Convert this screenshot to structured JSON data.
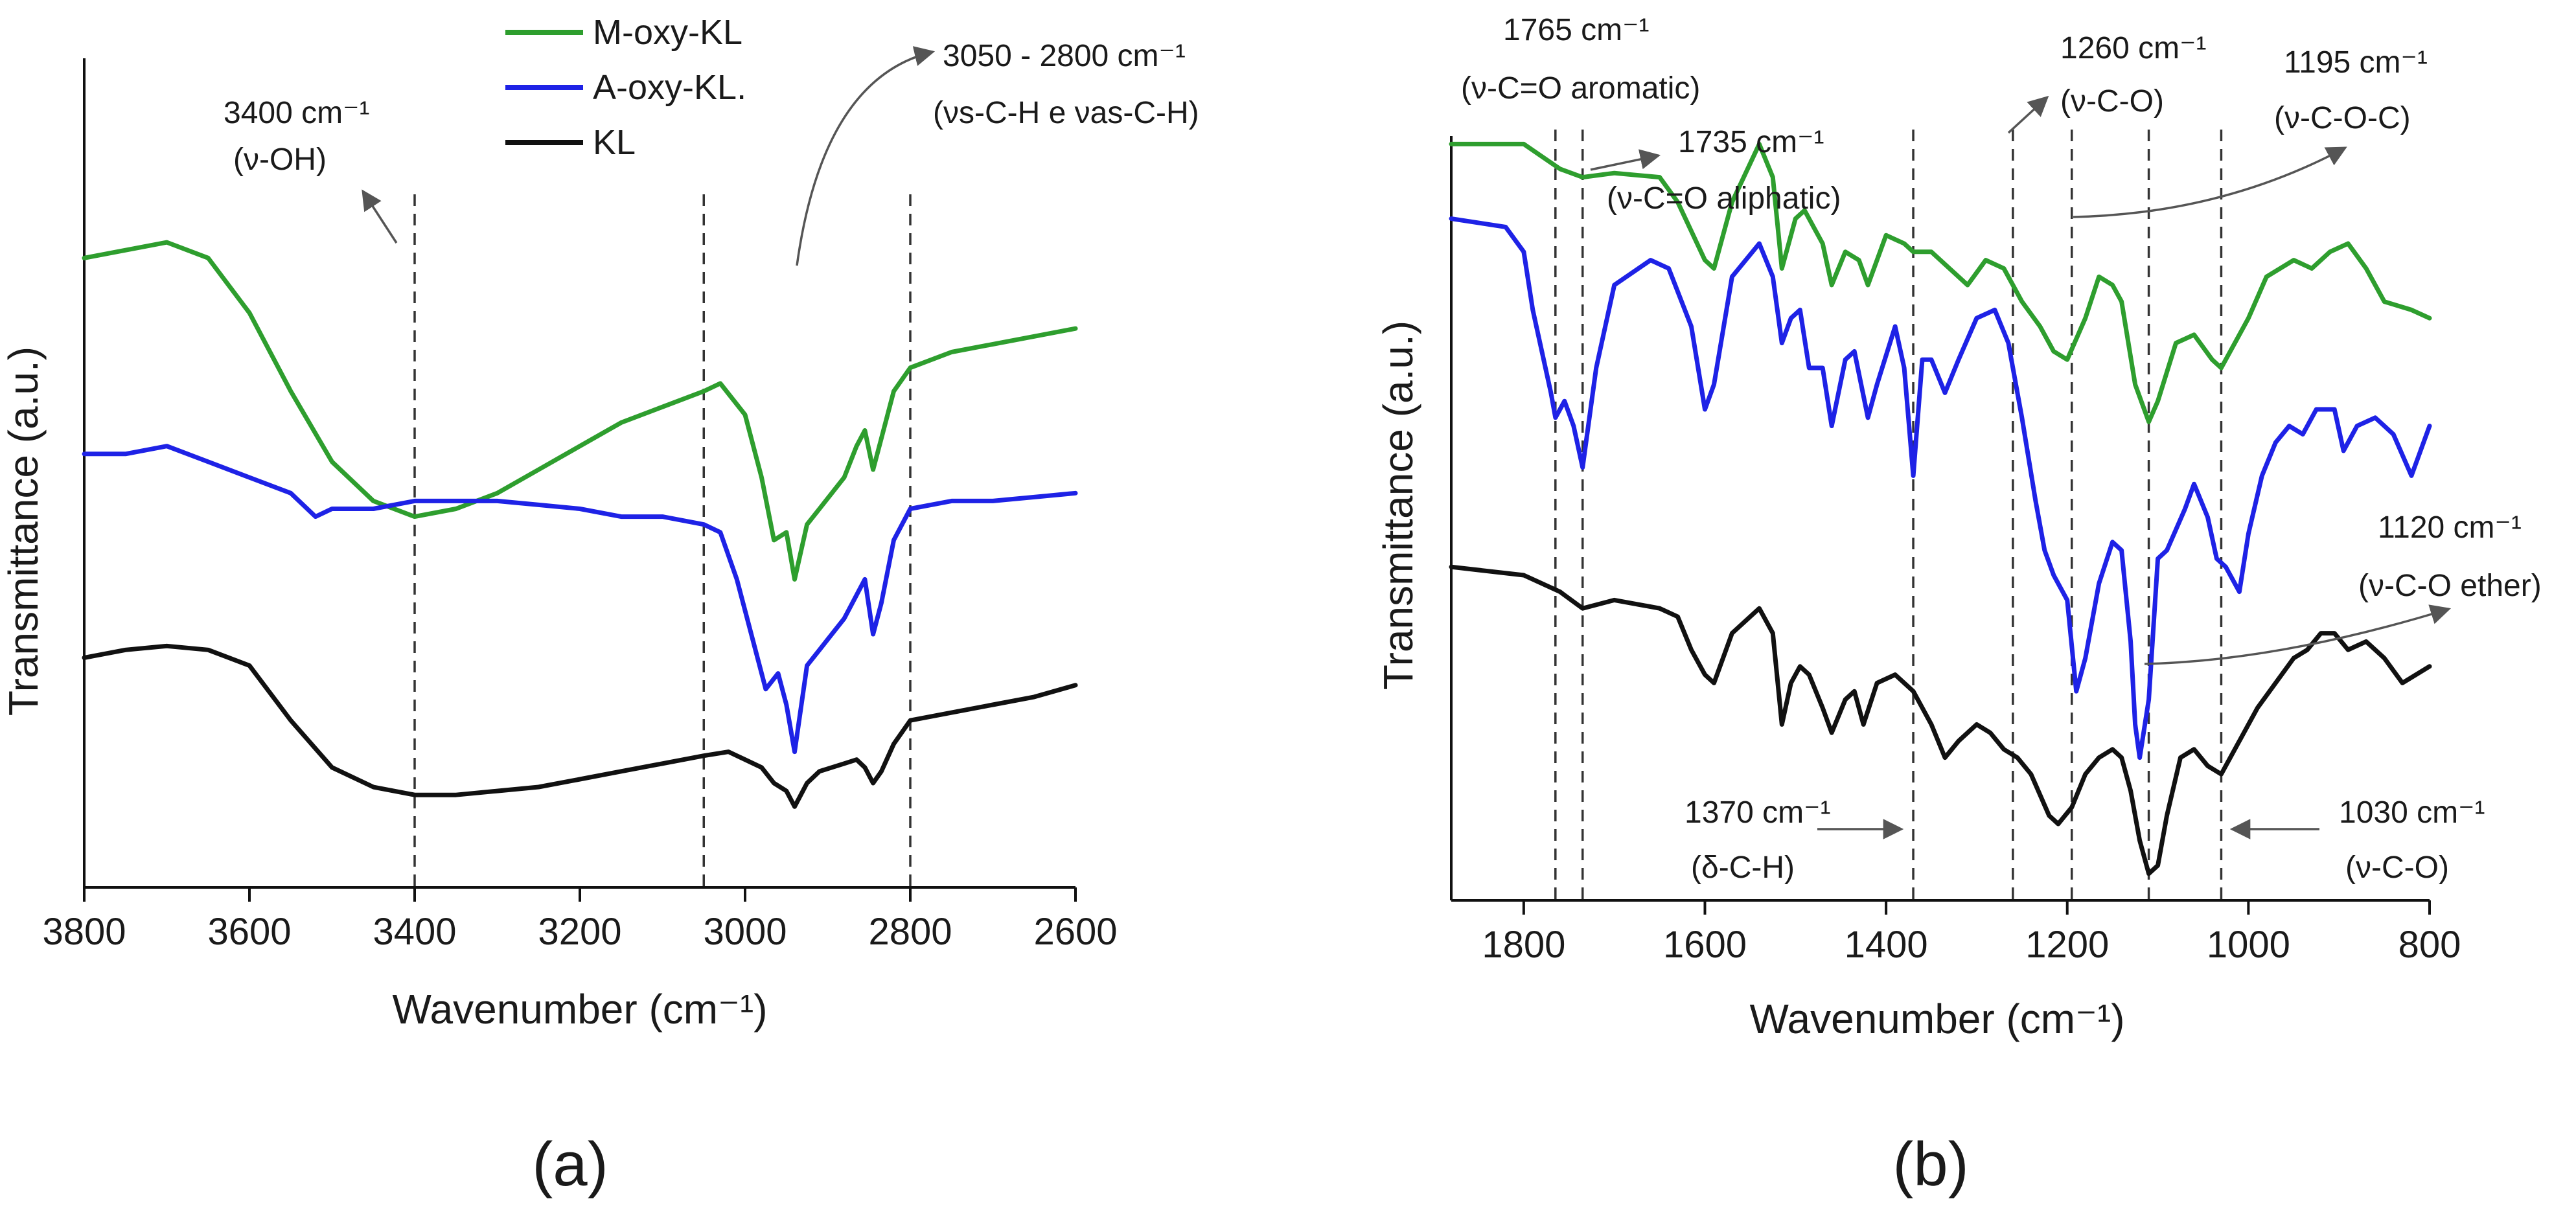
{
  "chart_data": [
    {
      "panel_label": "(a)",
      "type": "line",
      "xlabel": "Wavenumber (cm⁻¹)",
      "ylabel": "Transmittance (a.u.)",
      "xlim": [
        3800,
        2600
      ],
      "x_ticks": [
        "3800",
        "3600",
        "3400",
        "3200",
        "3000",
        "2800",
        "2600"
      ],
      "legend": [
        "M-oxy-KL",
        "A-oxy-KL.",
        "KL"
      ],
      "series": [
        {
          "name": "M-oxy-KL",
          "color": "#2e9e2e",
          "x": [
            3800,
            3750,
            3700,
            3650,
            3600,
            3550,
            3500,
            3450,
            3400,
            3350,
            3300,
            3250,
            3200,
            3150,
            3100,
            3050,
            3030,
            3000,
            2980,
            2965,
            2950,
            2940,
            2925,
            2910,
            2895,
            2880,
            2865,
            2855,
            2845,
            2835,
            2820,
            2800,
            2750,
            2700,
            2650,
            2600
          ],
          "y": [
            0.77,
            0.78,
            0.79,
            0.77,
            0.7,
            0.6,
            0.51,
            0.46,
            0.44,
            0.45,
            0.47,
            0.5,
            0.53,
            0.56,
            0.58,
            0.6,
            0.61,
            0.57,
            0.49,
            0.41,
            0.42,
            0.36,
            0.43,
            0.45,
            0.47,
            0.49,
            0.53,
            0.55,
            0.5,
            0.54,
            0.6,
            0.63,
            0.65,
            0.66,
            0.67,
            0.68
          ]
        },
        {
          "name": "A-oxy-KL.",
          "color": "#1e22e6",
          "x": [
            3800,
            3750,
            3700,
            3650,
            3600,
            3550,
            3520,
            3500,
            3450,
            3400,
            3350,
            3300,
            3250,
            3200,
            3150,
            3100,
            3050,
            3030,
            3010,
            2990,
            2975,
            2960,
            2950,
            2940,
            2925,
            2910,
            2895,
            2880,
            2865,
            2855,
            2845,
            2835,
            2820,
            2800,
            2750,
            2700,
            2650,
            2600
          ],
          "y": [
            0.52,
            0.52,
            0.53,
            0.51,
            0.49,
            0.47,
            0.44,
            0.45,
            0.45,
            0.46,
            0.46,
            0.46,
            0.455,
            0.45,
            0.44,
            0.44,
            0.43,
            0.42,
            0.36,
            0.28,
            0.22,
            0.24,
            0.2,
            0.14,
            0.25,
            0.27,
            0.29,
            0.31,
            0.34,
            0.36,
            0.29,
            0.33,
            0.41,
            0.45,
            0.46,
            0.46,
            0.465,
            0.47
          ]
        },
        {
          "name": "KL",
          "color": "#111111",
          "x": [
            3800,
            3750,
            3700,
            3650,
            3600,
            3550,
            3500,
            3450,
            3400,
            3350,
            3300,
            3250,
            3200,
            3150,
            3100,
            3050,
            3020,
            3000,
            2980,
            2965,
            2950,
            2940,
            2925,
            2910,
            2895,
            2880,
            2865,
            2855,
            2845,
            2835,
            2820,
            2800,
            2750,
            2700,
            2650,
            2600
          ],
          "y": [
            0.26,
            0.27,
            0.275,
            0.27,
            0.25,
            0.18,
            0.12,
            0.095,
            0.085,
            0.085,
            0.09,
            0.095,
            0.105,
            0.115,
            0.125,
            0.135,
            0.14,
            0.13,
            0.12,
            0.1,
            0.09,
            0.07,
            0.1,
            0.115,
            0.12,
            0.125,
            0.13,
            0.12,
            0.1,
            0.115,
            0.15,
            0.18,
            0.19,
            0.2,
            0.21,
            0.225
          ]
        }
      ],
      "guide_lines_x": [
        3400,
        3050,
        2800
      ],
      "annotations": {
        "oh": {
          "value": "3400 cm⁻¹",
          "label": "(ν-OH)"
        },
        "ch": {
          "value": "3050 - 2800 cm⁻¹",
          "label": "(νs-C-H e νas-C-H)"
        }
      }
    },
    {
      "panel_label": "(b)",
      "type": "line",
      "xlabel": "Wavenumber (cm⁻¹)",
      "ylabel": "Transmittance (a.u.)",
      "xlim": [
        1880,
        800
      ],
      "x_ticks": [
        "1800",
        "1600",
        "1400",
        "1200",
        "1000",
        "800"
      ],
      "series": [
        {
          "name": "M-oxy-KL",
          "color": "#2e9e2e",
          "x": [
            1880,
            1800,
            1760,
            1735,
            1700,
            1650,
            1630,
            1600,
            1590,
            1570,
            1540,
            1525,
            1515,
            1500,
            1490,
            1470,
            1460,
            1445,
            1430,
            1420,
            1400,
            1380,
            1370,
            1350,
            1330,
            1310,
            1290,
            1270,
            1250,
            1230,
            1215,
            1200,
            1180,
            1165,
            1150,
            1140,
            1125,
            1110,
            1100,
            1080,
            1060,
            1040,
            1030,
            1000,
            980,
            950,
            930,
            910,
            890,
            870,
            850,
            820,
            800
          ],
          "y": [
            0.92,
            0.92,
            0.89,
            0.88,
            0.885,
            0.88,
            0.85,
            0.78,
            0.77,
            0.85,
            0.92,
            0.88,
            0.77,
            0.83,
            0.84,
            0.8,
            0.75,
            0.79,
            0.78,
            0.75,
            0.81,
            0.8,
            0.79,
            0.79,
            0.77,
            0.75,
            0.78,
            0.77,
            0.73,
            0.7,
            0.67,
            0.66,
            0.71,
            0.76,
            0.75,
            0.73,
            0.63,
            0.585,
            0.61,
            0.68,
            0.69,
            0.66,
            0.65,
            0.71,
            0.76,
            0.78,
            0.77,
            0.79,
            0.8,
            0.77,
            0.73,
            0.72,
            0.71
          ]
        },
        {
          "name": "A-oxy-KL.",
          "color": "#1e22e6",
          "x": [
            1880,
            1820,
            1800,
            1790,
            1770,
            1765,
            1755,
            1745,
            1735,
            1720,
            1700,
            1660,
            1640,
            1615,
            1600,
            1590,
            1570,
            1540,
            1525,
            1515,
            1505,
            1495,
            1485,
            1470,
            1460,
            1445,
            1435,
            1420,
            1410,
            1390,
            1380,
            1370,
            1360,
            1350,
            1335,
            1320,
            1300,
            1280,
            1265,
            1250,
            1235,
            1225,
            1215,
            1200,
            1190,
            1180,
            1165,
            1150,
            1140,
            1130,
            1125,
            1120,
            1110,
            1100,
            1090,
            1070,
            1060,
            1045,
            1035,
            1025,
            1010,
            1000,
            985,
            970,
            955,
            940,
            925,
            905,
            895,
            880,
            860,
            840,
            820,
            800
          ],
          "y": [
            0.83,
            0.82,
            0.79,
            0.72,
            0.62,
            0.59,
            0.61,
            0.58,
            0.53,
            0.65,
            0.75,
            0.78,
            0.77,
            0.7,
            0.6,
            0.63,
            0.76,
            0.8,
            0.76,
            0.68,
            0.71,
            0.72,
            0.65,
            0.65,
            0.58,
            0.66,
            0.67,
            0.59,
            0.63,
            0.7,
            0.65,
            0.52,
            0.66,
            0.66,
            0.62,
            0.66,
            0.71,
            0.72,
            0.68,
            0.59,
            0.49,
            0.43,
            0.4,
            0.37,
            0.26,
            0.3,
            0.39,
            0.44,
            0.43,
            0.32,
            0.22,
            0.18,
            0.25,
            0.42,
            0.43,
            0.48,
            0.51,
            0.47,
            0.42,
            0.41,
            0.38,
            0.45,
            0.52,
            0.56,
            0.58,
            0.57,
            0.6,
            0.6,
            0.55,
            0.58,
            0.59,
            0.57,
            0.52,
            0.58
          ]
        },
        {
          "name": "KL",
          "color": "#111111",
          "x": [
            1880,
            1800,
            1760,
            1735,
            1700,
            1650,
            1630,
            1615,
            1600,
            1590,
            1570,
            1540,
            1525,
            1515,
            1505,
            1495,
            1485,
            1470,
            1460,
            1445,
            1435,
            1425,
            1410,
            1390,
            1370,
            1350,
            1335,
            1320,
            1300,
            1285,
            1270,
            1255,
            1240,
            1220,
            1210,
            1195,
            1180,
            1165,
            1150,
            1140,
            1130,
            1120,
            1110,
            1100,
            1090,
            1075,
            1060,
            1045,
            1030,
            1010,
            990,
            970,
            950,
            935,
            920,
            905,
            890,
            870,
            850,
            830,
            815,
            800
          ],
          "y": [
            0.41,
            0.4,
            0.38,
            0.36,
            0.37,
            0.36,
            0.35,
            0.31,
            0.28,
            0.27,
            0.33,
            0.36,
            0.33,
            0.22,
            0.27,
            0.29,
            0.28,
            0.24,
            0.21,
            0.25,
            0.26,
            0.22,
            0.27,
            0.28,
            0.26,
            0.22,
            0.18,
            0.2,
            0.22,
            0.21,
            0.19,
            0.18,
            0.16,
            0.11,
            0.1,
            0.12,
            0.16,
            0.18,
            0.19,
            0.18,
            0.14,
            0.08,
            0.04,
            0.05,
            0.11,
            0.18,
            0.19,
            0.17,
            0.16,
            0.2,
            0.24,
            0.27,
            0.3,
            0.31,
            0.33,
            0.33,
            0.31,
            0.32,
            0.3,
            0.27,
            0.28,
            0.29
          ]
        }
      ],
      "guide_lines_x": [
        1765,
        1735,
        1370,
        1260,
        1195,
        1110,
        1030
      ],
      "annotations": {
        "c1765": {
          "value": "1765 cm⁻¹",
          "label": "(ν-C=O aromatic)"
        },
        "c1735": {
          "value": "1735 cm⁻¹",
          "label": "(ν-C=O aliphatic)"
        },
        "c1260": {
          "value": "1260 cm⁻¹",
          "label": "(ν-C-O)"
        },
        "c1195": {
          "value": "1195 cm⁻¹",
          "label": "(ν-C-O-C)"
        },
        "c1120": {
          "value": "1120 cm⁻¹",
          "label": "(ν-C-O ether)"
        },
        "c1370": {
          "value": "1370 cm⁻¹",
          "label": "(δ-C-H)"
        },
        "c1030": {
          "value": "1030 cm⁻¹",
          "label": "(ν-C-O)"
        }
      }
    }
  ]
}
